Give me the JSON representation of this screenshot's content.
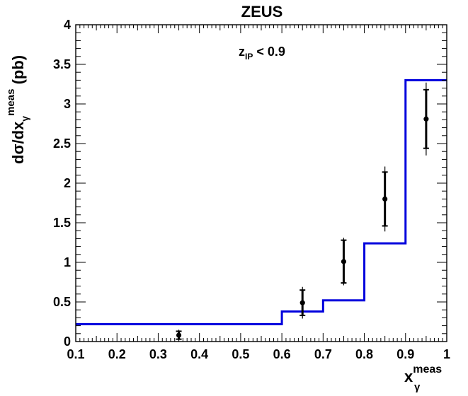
{
  "chart_data": {
    "type": "scatter",
    "title": "ZEUS",
    "annotation": {
      "main": "z",
      "sub": "IP",
      "rest": " < 0.9"
    },
    "xlabel": {
      "main": "x",
      "sub": "γ",
      "sup": "meas"
    },
    "ylabel": {
      "main": "dσ/dx",
      "sub": "γ",
      "sup": "meas",
      "unit": " (pb)"
    },
    "xlim": [
      0.1,
      1.0
    ],
    "ylim": [
      0,
      4
    ],
    "x_ticks": [
      0.1,
      0.2,
      0.3,
      0.4,
      0.5,
      0.6,
      0.7,
      0.8,
      0.9,
      1.0
    ],
    "x_tick_labels": [
      "0.1",
      "0.2",
      "0.3",
      "0.4",
      "0.5",
      "0.6",
      "0.7",
      "0.8",
      "0.9",
      "1"
    ],
    "y_ticks": [
      0,
      0.5,
      1,
      1.5,
      2,
      2.5,
      3,
      3.5,
      4
    ],
    "y_tick_labels": [
      "0",
      "0.5",
      "1",
      "1.5",
      "2",
      "2.5",
      "3",
      "3.5",
      "4"
    ],
    "grid": false,
    "series": [
      {
        "kind": "points",
        "color": "#000000",
        "x": [
          0.35,
          0.65,
          0.75,
          0.85,
          0.95
        ],
        "y": [
          0.08,
          0.49,
          1.01,
          1.8,
          2.81
        ],
        "err_stat": [
          0.05,
          0.16,
          0.27,
          0.34,
          0.37
        ],
        "err_total": [
          0.07,
          0.2,
          0.3,
          0.41,
          0.46
        ]
      },
      {
        "kind": "histogram",
        "color": "#0000dd",
        "edges": [
          0.1,
          0.6,
          0.7,
          0.8,
          0.9,
          1.0
        ],
        "values": [
          0.22,
          0.38,
          0.52,
          1.24,
          3.3
        ]
      }
    ]
  }
}
